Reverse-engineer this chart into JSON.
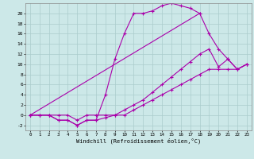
{
  "xlabel": "Windchill (Refroidissement éolien,°C)",
  "background_color": "#cce8e8",
  "grid_color": "#aacccc",
  "line_color": "#aa00aa",
  "xlim": [
    -0.5,
    23.5
  ],
  "ylim": [
    -3,
    22
  ],
  "xticks": [
    0,
    1,
    2,
    3,
    4,
    5,
    6,
    7,
    8,
    9,
    10,
    11,
    12,
    13,
    14,
    15,
    16,
    17,
    18,
    19,
    20,
    21,
    22,
    23
  ],
  "yticks": [
    -2,
    0,
    2,
    4,
    6,
    8,
    10,
    12,
    14,
    16,
    18,
    20
  ],
  "line1_x": [
    0,
    1,
    2,
    3,
    4,
    5,
    6,
    7,
    8,
    9,
    10,
    11,
    12,
    13,
    14,
    15,
    16,
    17,
    18
  ],
  "line1_y": [
    0,
    0,
    0,
    -1,
    -1,
    -2,
    -1,
    -1,
    4,
    11,
    16,
    20,
    20,
    20.5,
    21.5,
    22,
    21.5,
    21,
    20
  ],
  "line2_x": [
    0,
    18,
    19,
    20,
    21,
    22,
    23
  ],
  "line2_y": [
    0,
    20,
    16,
    13,
    11,
    9,
    10
  ],
  "line3_x": [
    0,
    1,
    2,
    3,
    4,
    5,
    6,
    7,
    8,
    9,
    10,
    11,
    12,
    13,
    14,
    15,
    16,
    17,
    18,
    19,
    20,
    21,
    22,
    23
  ],
  "line3_y": [
    0,
    0,
    0,
    -1,
    -1,
    -2,
    -1,
    -1,
    -0.5,
    0,
    1,
    2,
    3,
    4.5,
    6,
    7.5,
    9,
    10.5,
    12,
    13,
    9.5,
    11,
    9,
    10
  ],
  "line4_x": [
    0,
    1,
    2,
    3,
    4,
    5,
    6,
    7,
    8,
    9,
    10,
    11,
    12,
    13,
    14,
    15,
    16,
    17,
    18,
    19,
    20,
    21,
    22,
    23
  ],
  "line4_y": [
    0,
    0,
    0,
    0,
    0,
    -1,
    0,
    0,
    0,
    0,
    0,
    1,
    2,
    3,
    4,
    5,
    6,
    7,
    8,
    9,
    9,
    9,
    9,
    10
  ],
  "marker": "+",
  "markersize": 3,
  "linewidth": 0.8
}
